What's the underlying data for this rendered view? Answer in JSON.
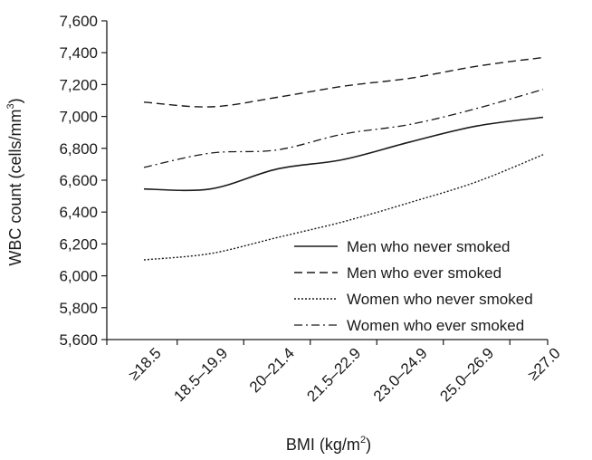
{
  "chart_data": {
    "type": "line",
    "xlabel": "BMI (kg/m",
    "xlabel_sup": "2",
    "xlabel_close": ")",
    "ylabel": "WBC count (cells/mm",
    "ylabel_sup": "3",
    "ylabel_close": ")",
    "categories": [
      "≥18.5",
      "18.5–19.9",
      "20–21.4",
      "21.5–22.9",
      "23.0–24.9",
      "25.0–26.9",
      "≥27.0"
    ],
    "ylim": [
      5600,
      7600
    ],
    "yticks": [
      "5,600",
      "5,800",
      "6,000",
      "6,200",
      "6,400",
      "6,600",
      "6,800",
      "7,000",
      "7,200",
      "7,400",
      "7,600"
    ],
    "grid": false,
    "legend_position": "lower-right",
    "series": [
      {
        "name": "Men who never smoked",
        "style": "solid",
        "values": [
          6545,
          6545,
          6670,
          6730,
          6840,
          6940,
          6995
        ]
      },
      {
        "name": "Men who ever smoked",
        "style": "dashed",
        "values": [
          7090,
          7060,
          7120,
          7190,
          7240,
          7315,
          7370
        ]
      },
      {
        "name": "Women who never smoked",
        "style": "dotted",
        "values": [
          6100,
          6140,
          6240,
          6340,
          6460,
          6590,
          6760
        ]
      },
      {
        "name": "Women who ever smoked",
        "style": "dashdot",
        "values": [
          6680,
          6770,
          6790,
          6890,
          6950,
          7050,
          7170
        ]
      }
    ]
  }
}
